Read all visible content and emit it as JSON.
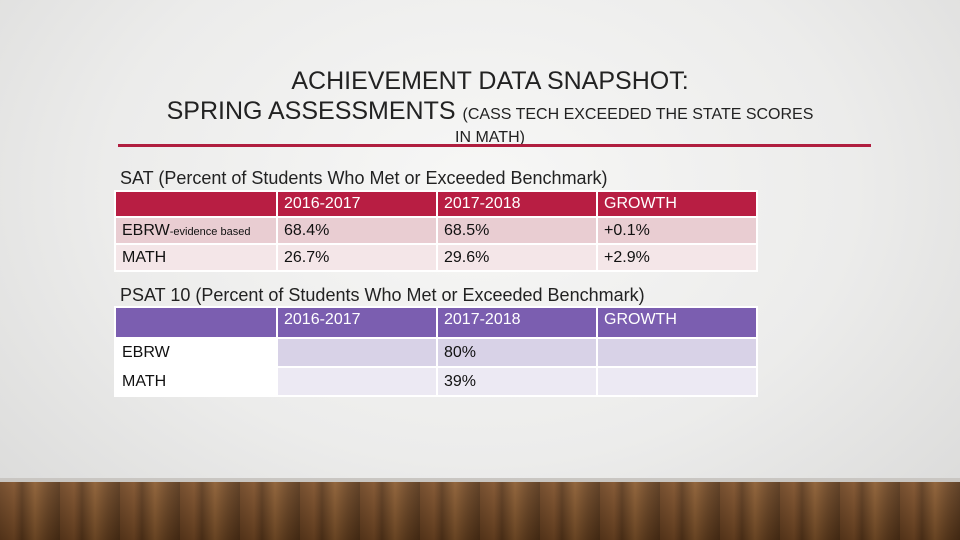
{
  "title": {
    "line1": "ACHIEVEMENT DATA SNAPSHOT:",
    "line2_main": "SPRING ASSESSMENTS",
    "line2_note": "(CASS TECH EXCEEDED THE STATE SCORES",
    "line3_note": "IN MATH)"
  },
  "sat": {
    "caption": "SAT (Percent of Students Who Met or Exceeded Benchmark)",
    "headers": [
      "",
      "2016-2017",
      "2017-2018",
      "GROWTH"
    ],
    "rows": [
      {
        "label": "EBRW",
        "label_suffix": "-evidence based",
        "y1": "68.4%",
        "y2": "68.5%",
        "growth": "+0.1%"
      },
      {
        "label": "MATH",
        "label_suffix": "",
        "y1": "26.7%",
        "y2": "29.6%",
        "growth": "+2.9%"
      }
    ]
  },
  "psat": {
    "caption": "PSAT 10 (Percent of Students Who Met or Exceeded Benchmark)",
    "headers": [
      "",
      "2016-2017",
      "2017-2018",
      "GROWTH"
    ],
    "rows": [
      {
        "label": "EBRW",
        "y1": "",
        "y2": "80%",
        "growth": ""
      },
      {
        "label": "MATH",
        "y1": "",
        "y2": "39%",
        "growth": ""
      }
    ]
  },
  "colors": {
    "accent_rule": "#b01e3f",
    "sat_header": "#b81e43",
    "psat_header": "#7b5eb0"
  }
}
